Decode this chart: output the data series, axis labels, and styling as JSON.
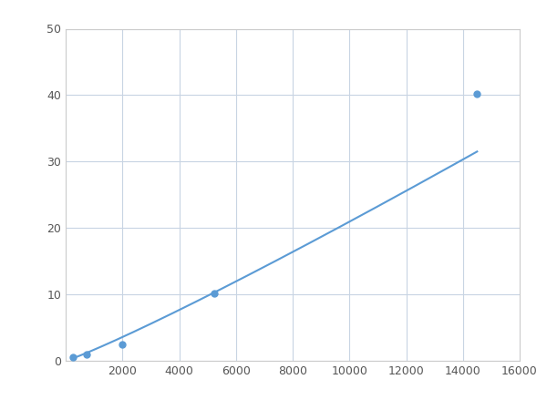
{
  "x": [
    250,
    750,
    2000,
    5250,
    14500
  ],
  "y": [
    0.5,
    1.0,
    2.5,
    10.2,
    40.2
  ],
  "xlim": [
    0,
    16000
  ],
  "ylim": [
    0,
    50
  ],
  "xticks": [
    0,
    2000,
    4000,
    6000,
    8000,
    10000,
    12000,
    14000,
    16000
  ],
  "yticks": [
    0,
    10,
    20,
    30,
    40,
    50
  ],
  "line_color": "#5b9bd5",
  "marker_color": "#5b9bd5",
  "marker_size": 5,
  "linewidth": 1.5,
  "grid_color": "#c8d4e3",
  "background_color": "#ffffff",
  "spine_color": "#cccccc",
  "tick_color": "#555555",
  "tick_fontsize": 9
}
